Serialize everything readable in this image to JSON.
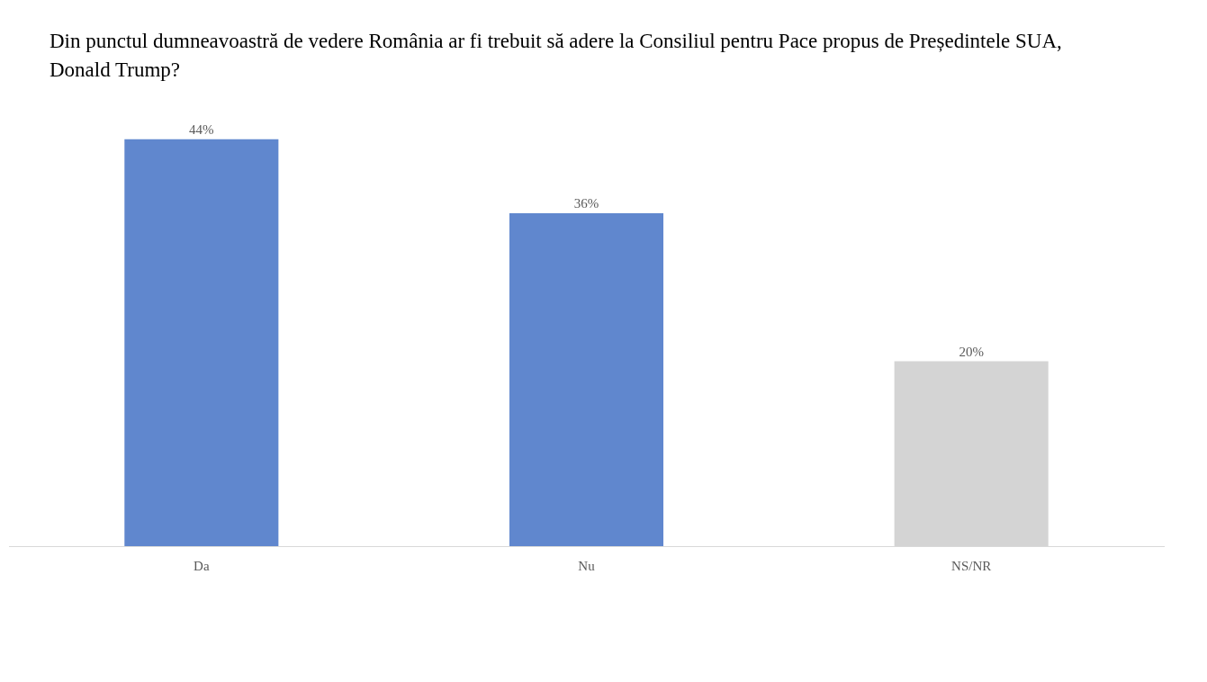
{
  "chart_data": {
    "type": "bar",
    "title": "Din punctul dumneavoastră de vedere România ar fi trebuit să adere la Consiliul pentru Pace propus de Președintele SUA, Donald Trump?",
    "categories": [
      "Da",
      "Nu",
      "NS/NR"
    ],
    "values": [
      44,
      36,
      20
    ],
    "colors": [
      "#6087ce",
      "#6087ce",
      "#d4d4d4"
    ],
    "value_labels": [
      "44%",
      "36%",
      "20%"
    ],
    "grid": false,
    "legend": false
  }
}
